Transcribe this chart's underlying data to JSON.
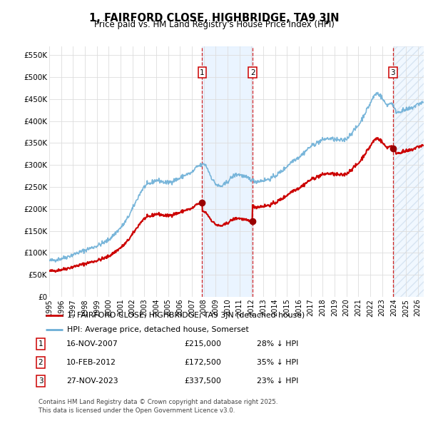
{
  "title": "1, FAIRFORD CLOSE, HIGHBRIDGE, TA9 3JN",
  "subtitle": "Price paid vs. HM Land Registry's House Price Index (HPI)",
  "ylabel_ticks": [
    "£0",
    "£50K",
    "£100K",
    "£150K",
    "£200K",
    "£250K",
    "£300K",
    "£350K",
    "£400K",
    "£450K",
    "£500K",
    "£550K"
  ],
  "ylim": [
    0,
    570000
  ],
  "xlim_start": 1995.0,
  "xlim_end": 2026.5,
  "transactions": [
    {
      "num": 1,
      "date_x": 2007.87,
      "price": 215000,
      "label": "16-NOV-2007",
      "price_str": "£215,000",
      "hpi_str": "28% ↓ HPI"
    },
    {
      "num": 2,
      "date_x": 2012.11,
      "price": 172500,
      "label": "10-FEB-2012",
      "price_str": "£172,500",
      "hpi_str": "35% ↓ HPI"
    },
    {
      "num": 3,
      "date_x": 2023.91,
      "price": 337500,
      "label": "27-NOV-2023",
      "price_str": "£337,500",
      "hpi_str": "23% ↓ HPI"
    }
  ],
  "hpi_line_color": "#6baed6",
  "price_line_color": "#cc0000",
  "vline_color": "#cc0000",
  "shade_color": "#ddeeff",
  "legend_label_price": "1, FAIRFORD CLOSE, HIGHBRIDGE, TA9 3JN (detached house)",
  "legend_label_hpi": "HPI: Average price, detached house, Somerset",
  "footer1": "Contains HM Land Registry data © Crown copyright and database right 2025.",
  "footer2": "This data is licensed under the Open Government Licence v3.0.",
  "background_color": "#ffffff",
  "grid_color": "#dddddd"
}
